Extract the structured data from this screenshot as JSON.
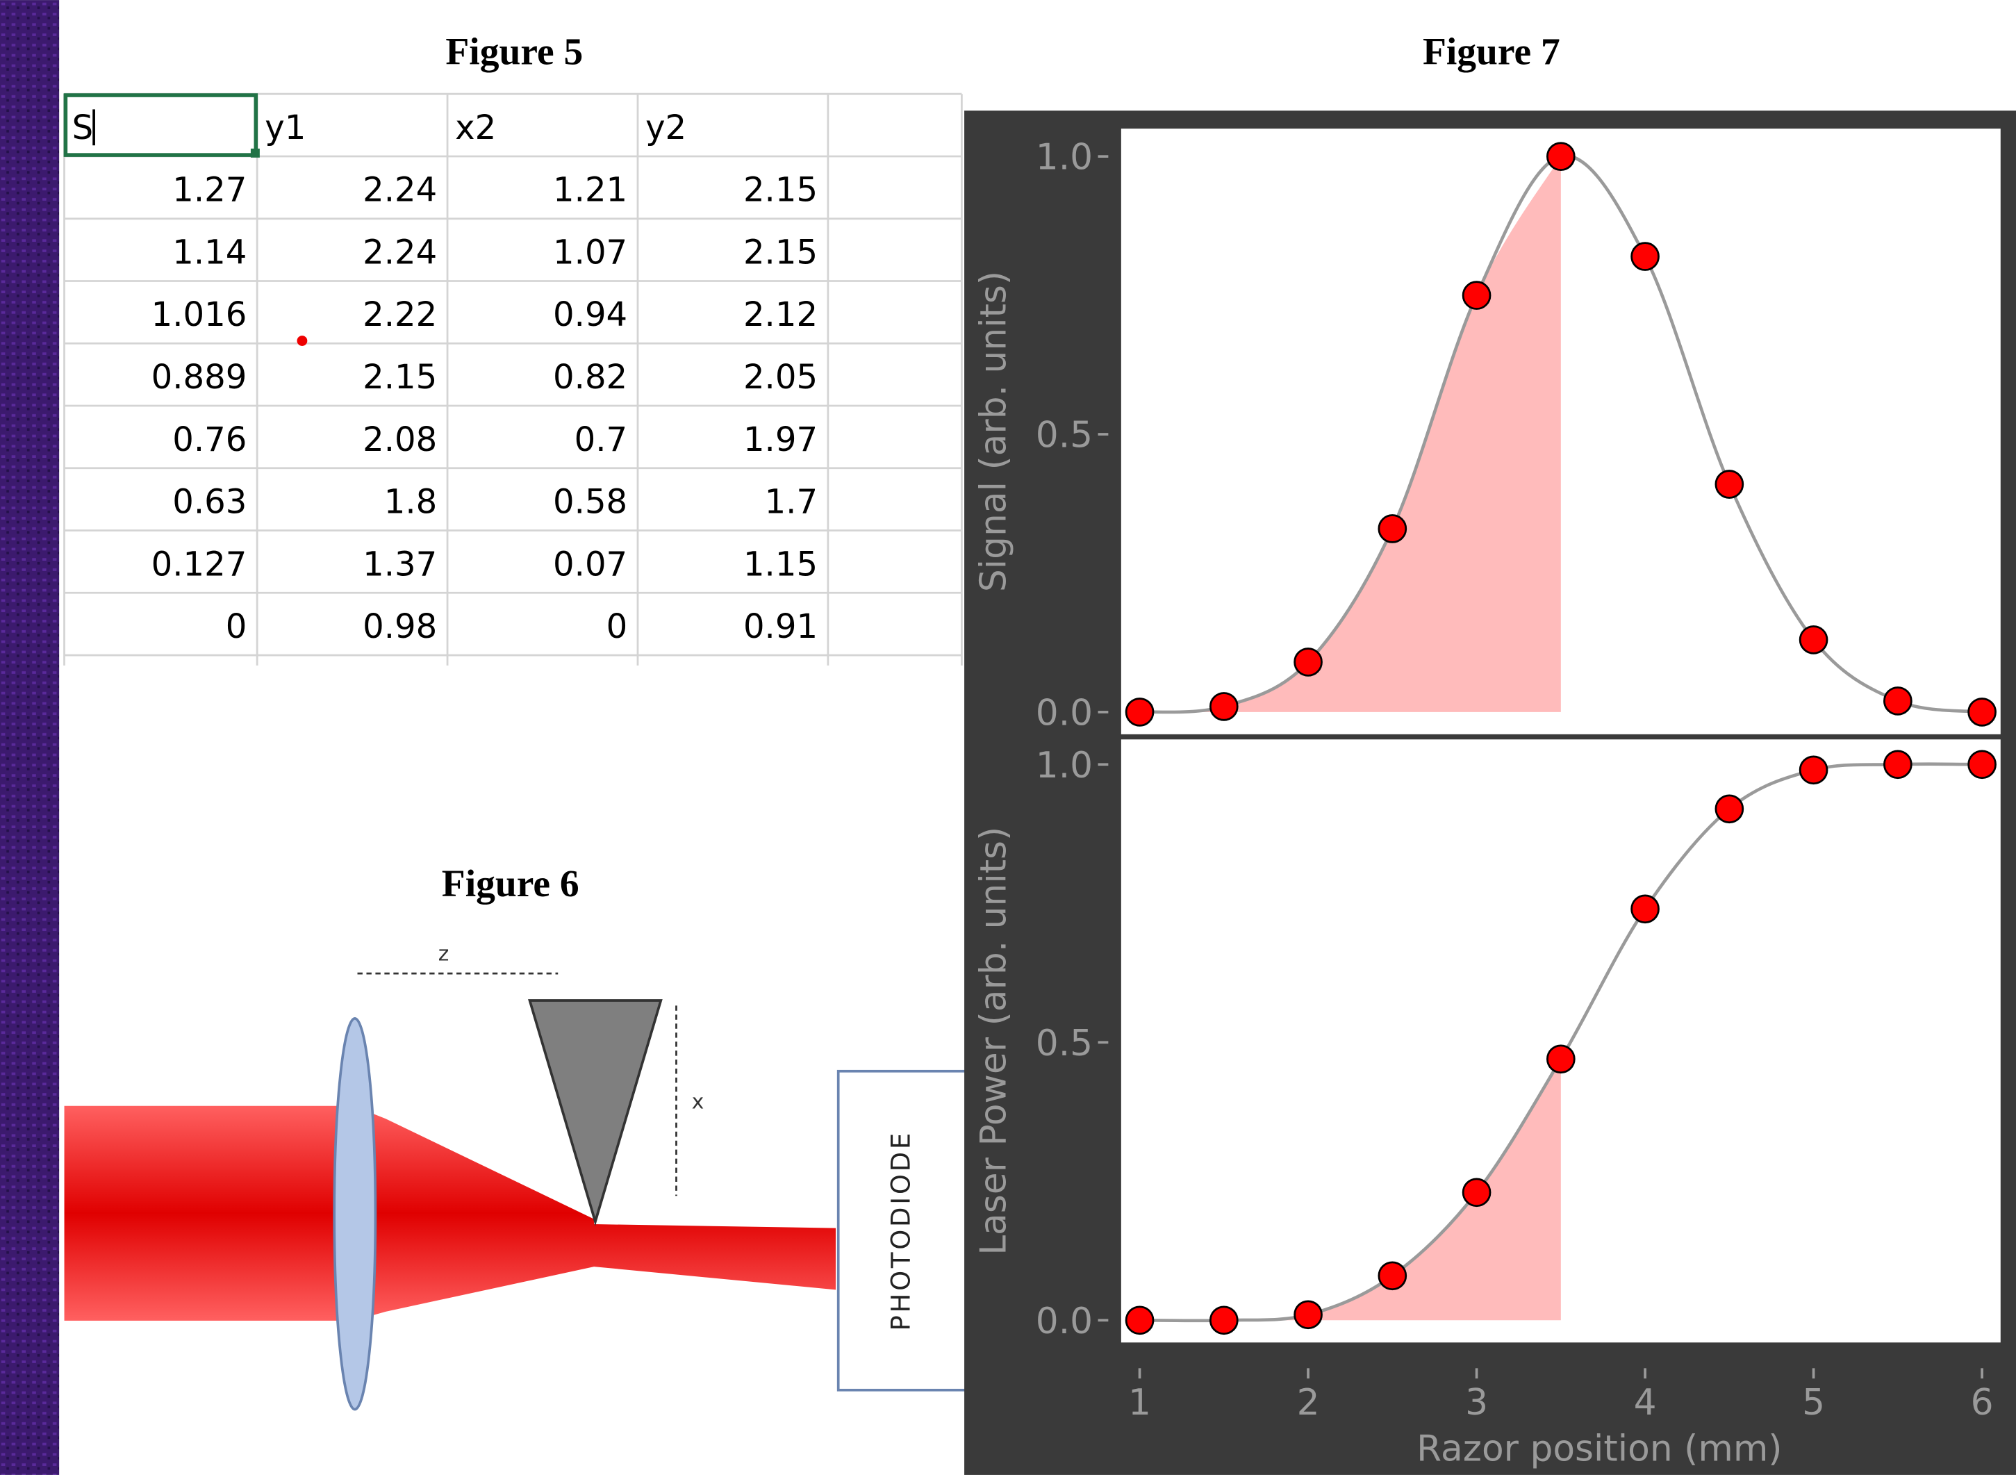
{
  "figure5": {
    "title": "Figure 5",
    "table": {
      "header": [
        "S",
        "y1",
        "x2",
        "y2"
      ],
      "rows": [
        [
          1.27,
          2.24,
          1.21,
          2.15
        ],
        [
          1.14,
          2.24,
          1.07,
          2.15
        ],
        [
          1.016,
          2.22,
          0.94,
          2.12
        ],
        [
          0.889,
          2.15,
          0.82,
          2.05
        ],
        [
          0.76,
          2.08,
          0.7,
          1.97
        ],
        [
          0.63,
          1.8,
          0.58,
          1.7
        ],
        [
          0.127,
          1.37,
          0.07,
          1.15
        ],
        [
          0,
          0.98,
          0,
          0.91
        ]
      ]
    }
  },
  "figure6": {
    "title": "Figure 6",
    "labels": {
      "z": "z",
      "x": "x",
      "detector": "PHOTODIODE"
    }
  },
  "figure7": {
    "title": "Figure 7"
  },
  "chart_data": [
    {
      "type": "line",
      "y_label": "Signal (arb. units)",
      "x": [
        1,
        1.5,
        2,
        2.5,
        3,
        3.5,
        4,
        4.5,
        5,
        5.5,
        6
      ],
      "series": [
        {
          "values": [
            0,
            0.01,
            0.09,
            0.33,
            0.75,
            1.0,
            0.82,
            0.41,
            0.13,
            0.02,
            0.0
          ],
          "color": "#ff0000"
        }
      ],
      "line_color": "#9a9a9a",
      "fill_color": "#ffbbbb",
      "fill_until_x": 3.5,
      "xlim": [
        0.89,
        6.11
      ],
      "ylim": [
        -0.04,
        1.05
      ],
      "yticks": [
        {
          "value": 0,
          "label": "0.0"
        },
        0.5,
        {
          "value": 1,
          "label": "1.0"
        }
      ]
    },
    {
      "type": "line",
      "y_label": "Laser Power (arb. units)",
      "x_label": "Razor position (mm)",
      "x": [
        1,
        1.5,
        2,
        2.5,
        3,
        3.5,
        4,
        4.5,
        5,
        5.5,
        6
      ],
      "series": [
        {
          "values": [
            0,
            0,
            0.01,
            0.08,
            0.23,
            0.47,
            0.74,
            0.92,
            0.99,
            1.0,
            1.0
          ],
          "color": "#ff0000"
        }
      ],
      "line_color": "#9a9a9a",
      "fill_color": "#ffbbbb",
      "fill_until_x": 3.5,
      "xlim": [
        0.89,
        6.11
      ],
      "ylim": [
        -0.04,
        1.045
      ],
      "yticks": [
        {
          "value": 0,
          "label": "0.0"
        },
        0.5,
        {
          "value": 1,
          "label": "1.0"
        }
      ],
      "xticks": [
        1,
        2,
        3,
        4,
        5,
        6
      ]
    }
  ]
}
